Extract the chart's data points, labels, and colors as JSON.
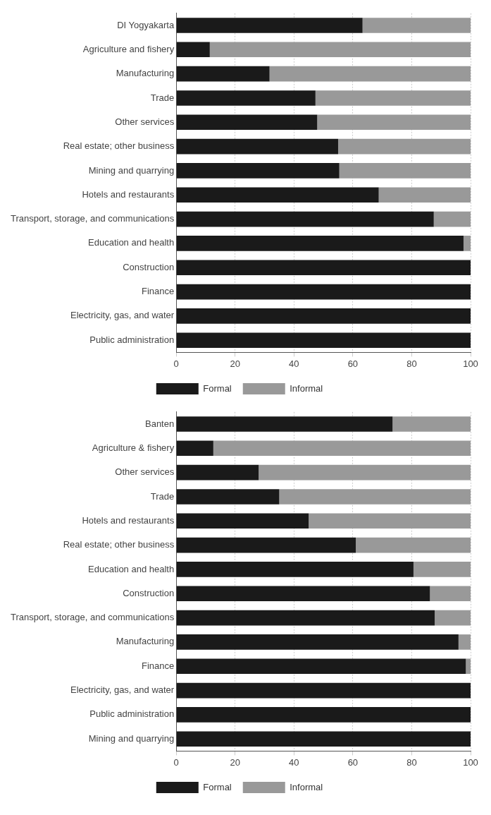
{
  "chart_data": [
    {
      "type": "bar",
      "orientation": "horizontal",
      "stacked": true,
      "categories": [
        "DI Yogyakarta",
        "Agriculture and fishery",
        "Manufacturing",
        "Trade",
        "Other services",
        "Real estate; other business",
        "Mining and quarrying",
        "Hotels and restaurants",
        "Transport, storage, and communications",
        "Education and health",
        "Construction",
        "Finance",
        "Electricity, gas, and water",
        "Public administration"
      ],
      "series": [
        {
          "name": "Formal",
          "color": "#1a1a1a",
          "values": [
            63.3,
            11.4,
            31.7,
            47.3,
            47.9,
            55,
            55.4,
            68.8,
            87.5,
            97.6,
            100,
            100,
            100,
            100
          ]
        },
        {
          "name": "Informal",
          "color": "#999999",
          "values": [
            36.7,
            88.6,
            68.3,
            52.7,
            52.1,
            45,
            44.6,
            31.2,
            12.5,
            2.4,
            0,
            0,
            0,
            0
          ]
        }
      ],
      "xlim": [
        0,
        100
      ],
      "xticks": [
        0,
        20,
        40,
        60,
        80,
        100
      ],
      "grid": "x",
      "legend": "bottom"
    },
    {
      "type": "bar",
      "orientation": "horizontal",
      "stacked": true,
      "categories": [
        "Banten",
        "Agriculture & fishery",
        "Other services",
        "Trade",
        "Hotels and restaurants",
        "Real estate; other business",
        "Education and health",
        "Construction",
        "Transport, storage, and communications",
        "Manufacturing",
        "Finance",
        "Electricity, gas, and water",
        "Public administration",
        "Mining and quarrying"
      ],
      "series": [
        {
          "name": "Formal",
          "color": "#1a1a1a",
          "values": [
            73.5,
            12.6,
            28,
            35,
            45,
            61,
            80.6,
            86.2,
            87.8,
            95.9,
            98.4,
            100,
            100,
            100
          ]
        },
        {
          "name": "Informal",
          "color": "#999999",
          "values": [
            26.5,
            87.4,
            72,
            65,
            55,
            39,
            19.4,
            13.8,
            12.2,
            4.1,
            1.6,
            0,
            0,
            0
          ]
        }
      ],
      "xlim": [
        0,
        100
      ],
      "xticks": [
        0,
        20,
        40,
        60,
        80,
        100
      ],
      "grid": "x",
      "legend": "bottom"
    }
  ]
}
